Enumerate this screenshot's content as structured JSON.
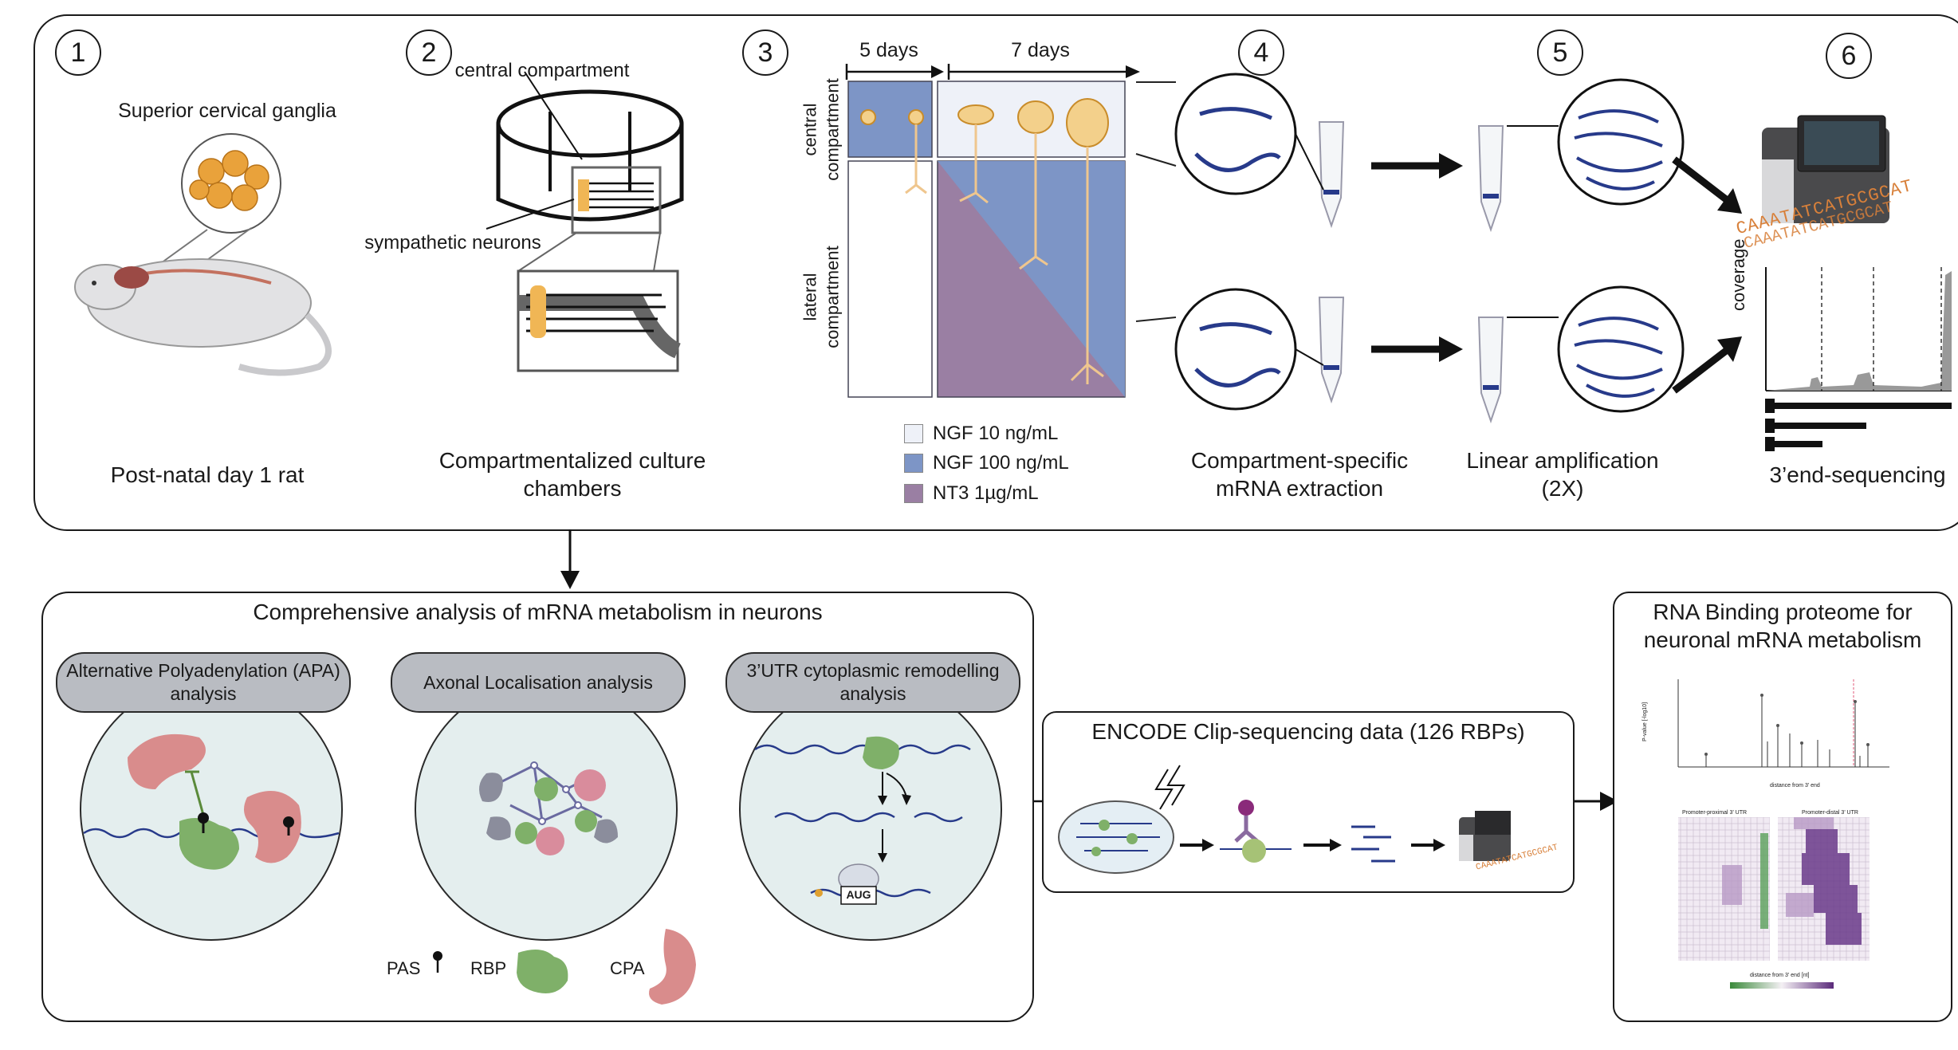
{
  "steps": {
    "s1": {
      "num": "1",
      "label": "Post-natal day 1 rat",
      "callout": "Superior cervical ganglia"
    },
    "s2": {
      "num": "2",
      "label": "Compartmentalized culture chambers",
      "callout_top": "central compartment",
      "callout_mid": "sympathetic neurons"
    },
    "s3": {
      "num": "3",
      "days_a": "5 days",
      "days_b": "7 days",
      "axis_top": "central compartment",
      "axis_bottom": "lateral compartment"
    },
    "s4": {
      "num": "4",
      "label": "Compartment-specific mRNA extraction"
    },
    "s5": {
      "num": "5",
      "label": "Linear amplification (2X)"
    },
    "s6": {
      "num": "6",
      "label": "3’end-sequencing",
      "coverage": "coverage",
      "seq_text": "CAAATATCATGCGCAT"
    }
  },
  "legend": [
    {
      "label": "NGF 10 ng/mL",
      "color": "#eef1f8"
    },
    {
      "label": "NGF 100 ng/mL",
      "color": "#7d95c6"
    },
    {
      "label": "NT3 1µg/mL",
      "color": "#9a7fa3"
    }
  ],
  "analysis": {
    "title": "Comprehensive analysis of mRNA metabolism in neurons",
    "pills": [
      {
        "label": "Alternative Polyadenylation (APA) analysis"
      },
      {
        "label": "Axonal Localisation analysis"
      },
      {
        "label": "3’UTR cytoplasmic remodelling analysis"
      }
    ],
    "aug": "AUG",
    "key": {
      "pas": "PAS",
      "rbp": "RBP",
      "cpa": "CPA"
    }
  },
  "encode": {
    "title": "ENCODE Clip-sequencing data (126 RBPs)"
  },
  "proteome": {
    "title": "RNA Binding proteome for neuronal mRNA metabolism",
    "heatmap_left": "Promoter-proximal 3’ UTR",
    "heatmap_right": "Promoter-distal 3’ UTR",
    "xlabel": "distance from 3' end",
    "xlabel2": "distance from 3' end [nt]",
    "ylabel": "P-value [-log10]"
  },
  "colors": {
    "ngf_low": "#eef1f8",
    "ngf_high": "#7d95c6",
    "nt3": "#9a7fa3",
    "rbp": "#7fb069",
    "cpa": "#d98c8c",
    "mrna": "#273a8a",
    "neuron": "#f0c67a",
    "seq": "#d8803a"
  }
}
